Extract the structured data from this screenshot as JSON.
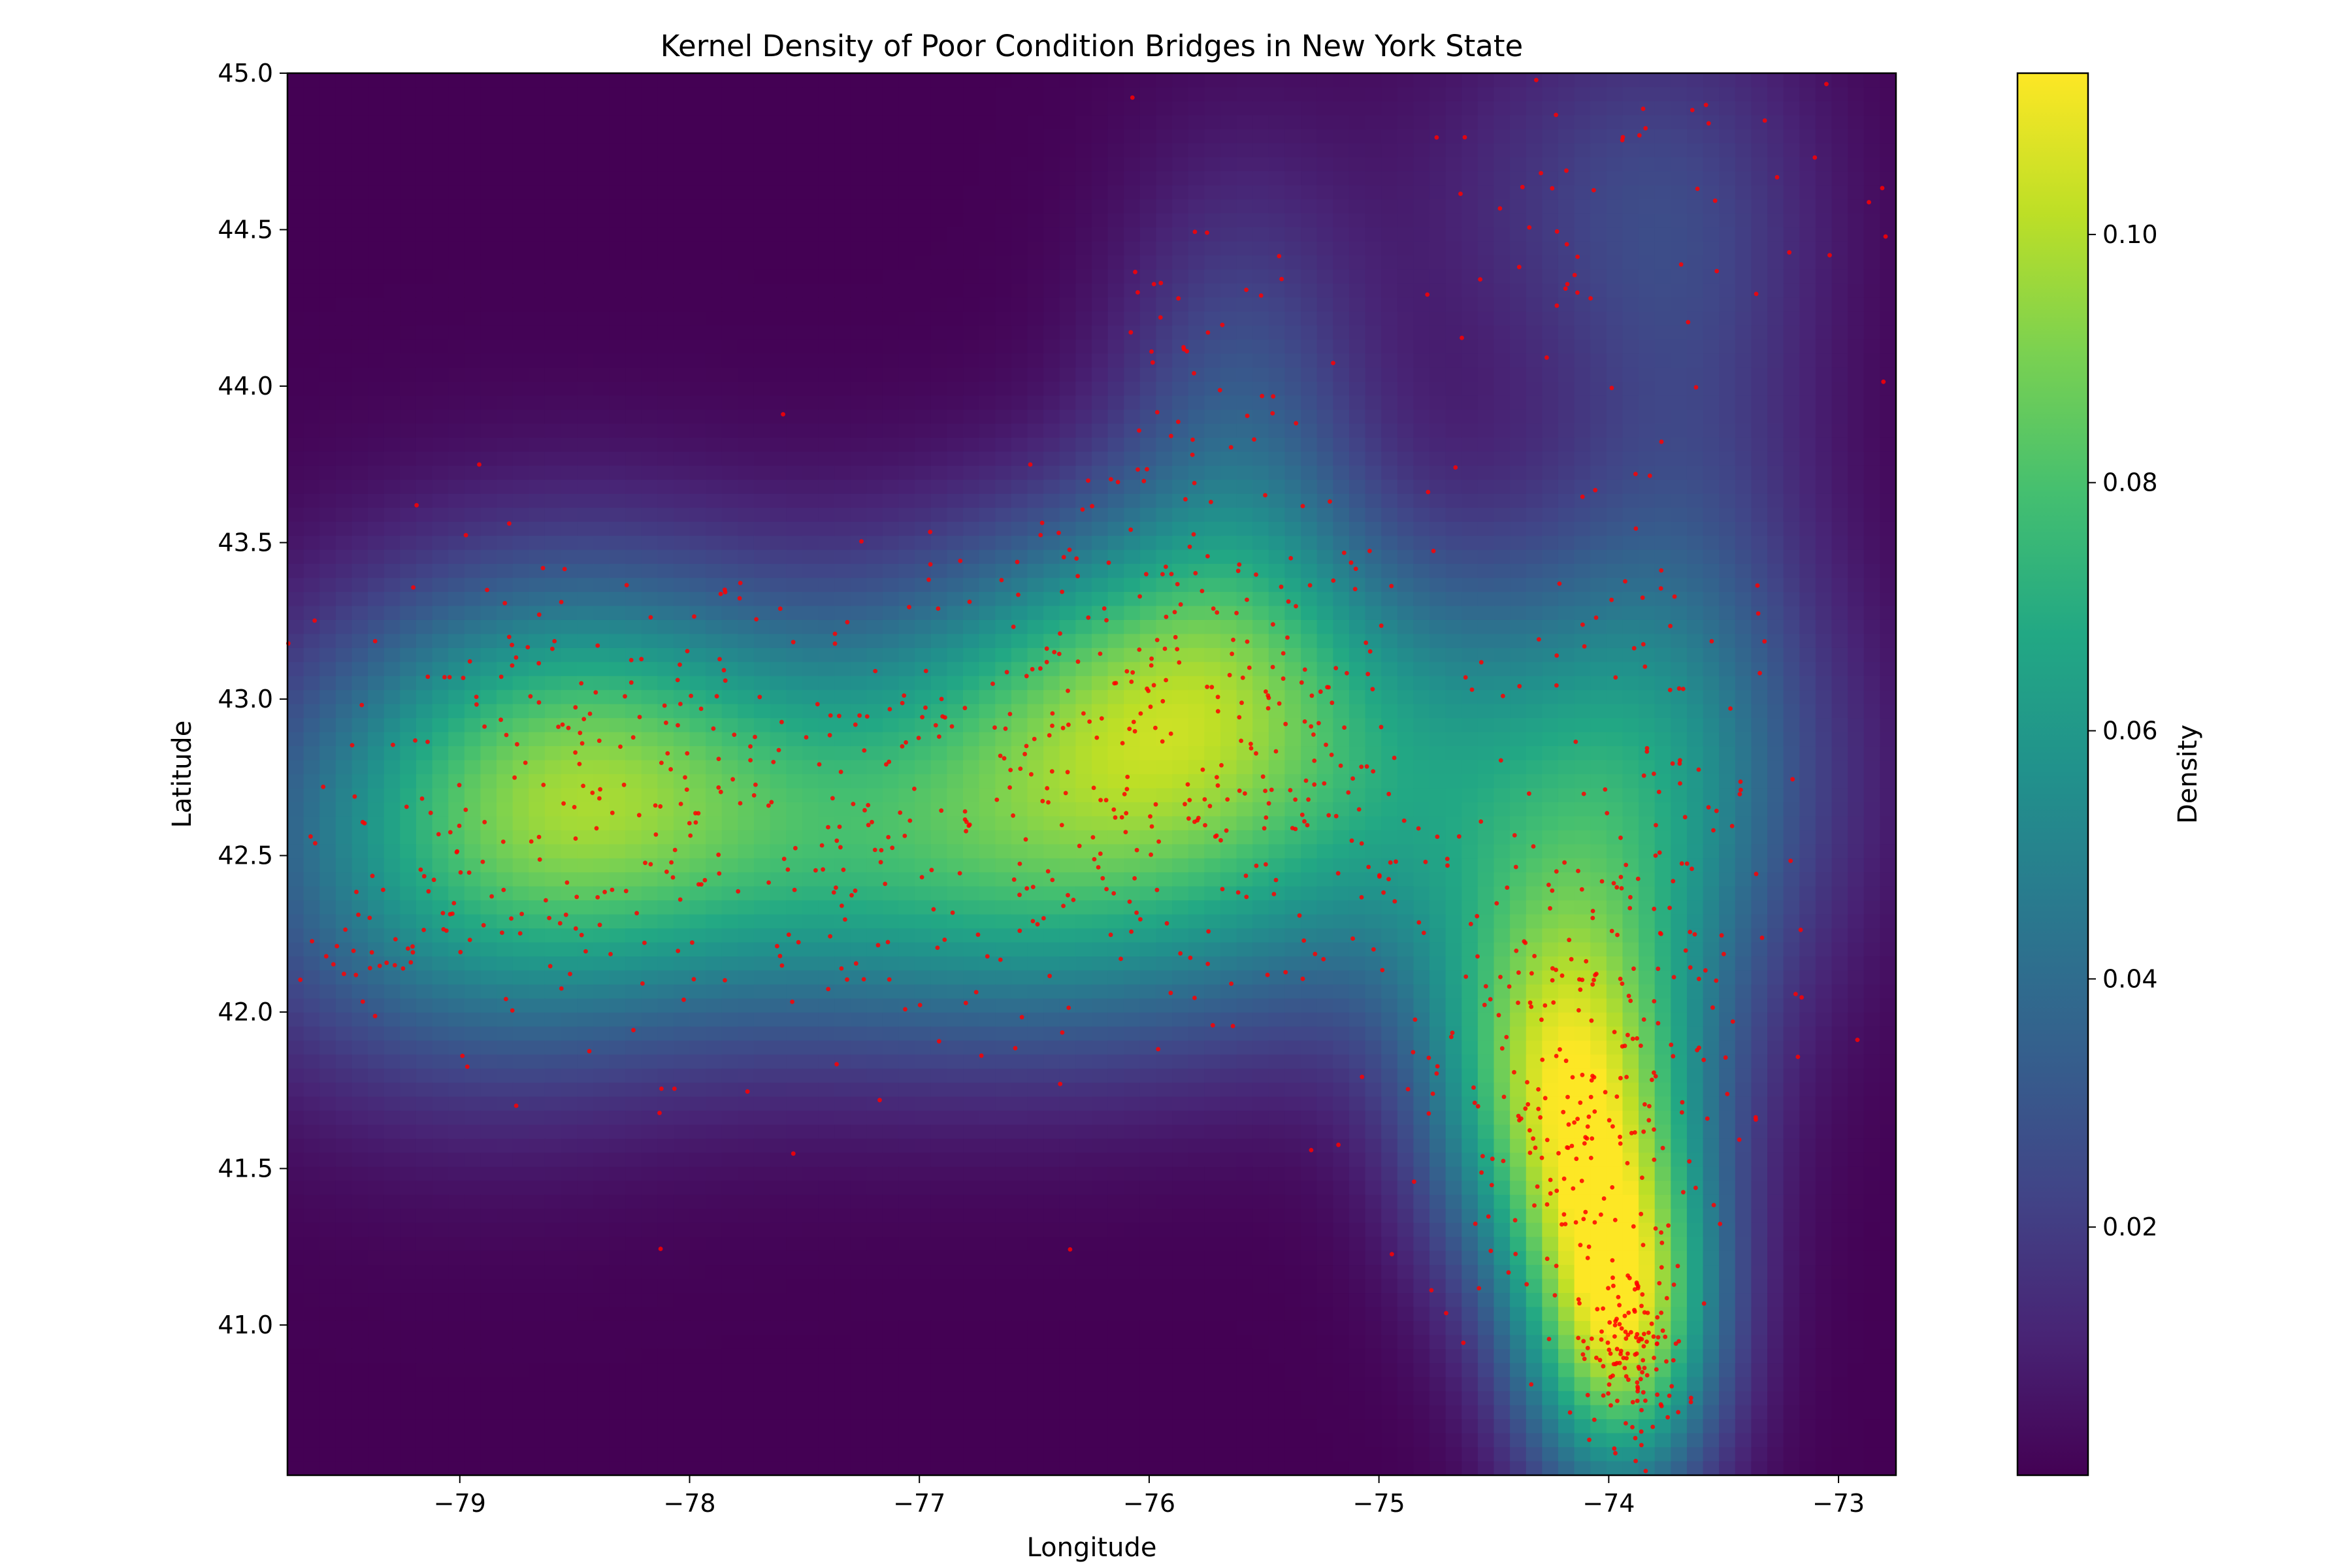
{
  "chart_data": {
    "type": "heatmap",
    "title": "Kernel Density of Poor Condition Bridges in New York State",
    "xlabel": "Longitude",
    "ylabel": "Latitude",
    "xlim": [
      -79.75,
      -72.75
    ],
    "ylim": [
      40.52,
      45.0
    ],
    "xticks": [
      -79,
      -78,
      -77,
      -76,
      -75,
      -74,
      -73
    ],
    "xtick_labels": [
      "−79",
      "−78",
      "−77",
      "−76",
      "−75",
      "−74",
      "−73"
    ],
    "yticks": [
      41.0,
      41.5,
      42.0,
      42.5,
      43.0,
      43.5,
      44.0,
      44.5,
      45.0
    ],
    "ytick_labels": [
      "41.0",
      "41.5",
      "42.0",
      "42.5",
      "43.0",
      "43.5",
      "44.0",
      "44.5",
      "45.0"
    ],
    "colormap": "viridis",
    "colorbar": {
      "label": "Density",
      "range": [
        0.0,
        0.113
      ],
      "ticks": [
        0.02,
        0.04,
        0.06,
        0.08,
        0.1
      ],
      "tick_labels": [
        "0.02",
        "0.04",
        "0.06",
        "0.08",
        "0.10"
      ]
    },
    "density_hotspots": [
      {
        "lon": -76.0,
        "lat": 43.05,
        "density": 0.075
      },
      {
        "lon": -78.5,
        "lat": 42.85,
        "density": 0.065
      },
      {
        "lon": -76.7,
        "lat": 42.55,
        "density": 0.06
      },
      {
        "lon": -74.2,
        "lat": 41.7,
        "density": 0.105
      },
      {
        "lon": -73.95,
        "lat": 40.95,
        "density": 0.113
      },
      {
        "lon": -74.0,
        "lat": 44.6,
        "density": 0.02
      }
    ],
    "points_series": {
      "name": "",
      "color": "#ff0000",
      "note_count_approx": 1500
    }
  }
}
